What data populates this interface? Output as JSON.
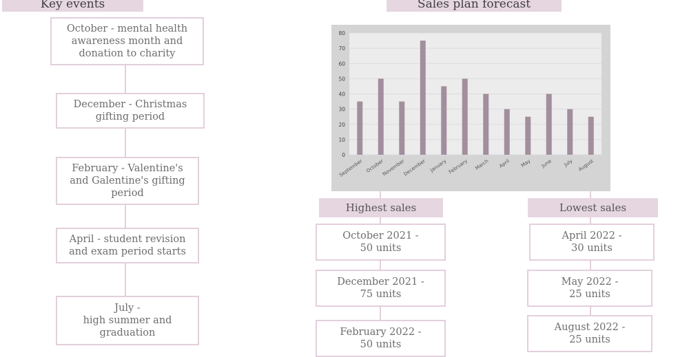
{
  "key_events": {
    "title": "Key events",
    "items": [
      "October - mental health awareness month and donation to charity",
      "December - Christmas gifting period",
      "February - Valentine's and Galentine's gifting period",
      "April - student revision and exam period starts",
      "July -\nhigh summer and graduation"
    ]
  },
  "sales_plan": {
    "title": "Sales plan forecast"
  },
  "highest_sales": {
    "label": "Highest sales",
    "items": [
      "October 2021 -\n50 units",
      "December 2021 -\n75 units",
      "February 2022 -\n50 units"
    ]
  },
  "lowest_sales": {
    "label": "Lowest sales",
    "items": [
      "April 2022 -\n30 units",
      "May 2022 -\n25 units",
      "August 2022 -\n25 units"
    ]
  },
  "colors": {
    "accent": "#e6d6e0",
    "border": "#e3cfdc",
    "bar": "#a28e9d",
    "chart_bg": "#d4d4d4",
    "plot_bg": "#ececec"
  },
  "chart_data": {
    "type": "bar",
    "categories": [
      "September",
      "October",
      "November",
      "December",
      "January",
      "February",
      "March",
      "April",
      "May",
      "June",
      "July",
      "August"
    ],
    "values": [
      35,
      50,
      35,
      75,
      45,
      50,
      40,
      30,
      25,
      40,
      30,
      25
    ],
    "ylim": [
      0,
      80
    ],
    "yticks": [
      "0",
      "10",
      "20",
      "30",
      "40",
      "50",
      "60",
      "70",
      "80"
    ],
    "grid": true
  }
}
